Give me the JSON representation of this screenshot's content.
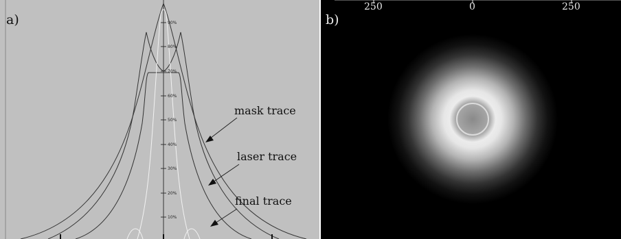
{
  "panel_a": {
    "label": "a)",
    "callouts": {
      "mask": "mask trace",
      "laser": "laser trace",
      "final": "final trace"
    },
    "percent_ticks": [
      "90%",
      "80%",
      "70%",
      "60%",
      "50%",
      "40%",
      "30%",
      "20%",
      "10%"
    ]
  },
  "panel_b": {
    "label": "b)",
    "top_ticks": [
      "250",
      "0",
      "250"
    ]
  },
  "colors": {
    "panel_a_bg": "#c0c0c0",
    "trace_dark": "#333333",
    "trace_light": "#f0f0f0",
    "panel_b_bg": "#000000"
  }
}
